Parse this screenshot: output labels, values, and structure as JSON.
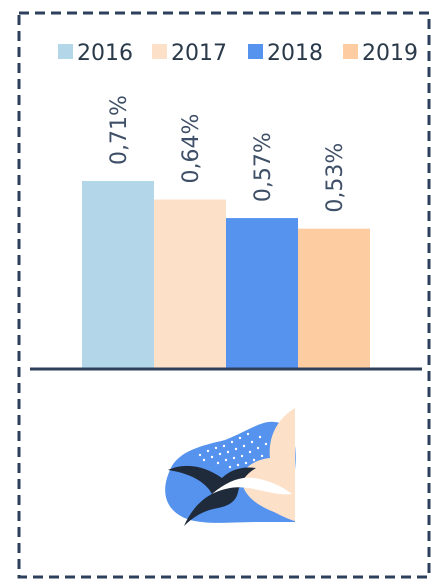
{
  "colors": {
    "frame": "#2e3f5c",
    "axis": "#2e3f5c",
    "text": "#3e4f67",
    "series": [
      "#b3d7e8",
      "#fde0c8",
      "#5593ee",
      "#fdcca1"
    ]
  },
  "chart_data": {
    "type": "bar",
    "categories": [
      "2016",
      "2017",
      "2018",
      "2019"
    ],
    "values": [
      0.71,
      0.64,
      0.57,
      0.53
    ],
    "value_labels": [
      "0,71%",
      "0,64%",
      "0,57%",
      "0,53%"
    ],
    "unit": "%",
    "ylim": [
      0,
      0.71
    ],
    "grid": false,
    "legend_position": "top",
    "legend": [
      "2016",
      "2017",
      "2018",
      "2019"
    ]
  }
}
